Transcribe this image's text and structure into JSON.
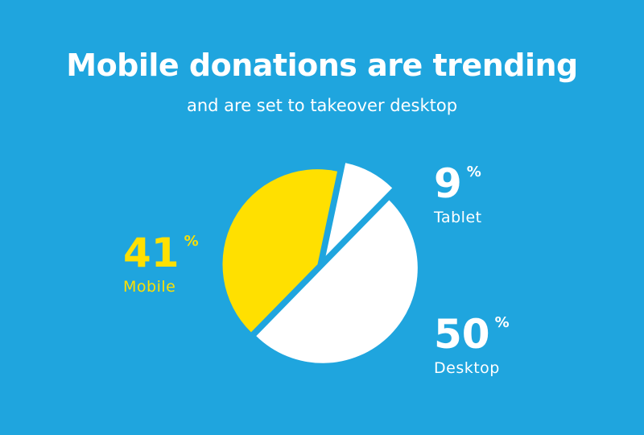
{
  "header": {
    "title": "Mobile donations are trending",
    "subtitle": "and are set to takeover desktop"
  },
  "colors": {
    "background": "#1FA5DE",
    "mobile": "#FFE000",
    "tablet": "#FFFFFF",
    "desktop": "#FFFFFF"
  },
  "chart_data": {
    "type": "pie",
    "title": "Mobile donations are trending",
    "subtitle": "and are set to takeover desktop",
    "slices": [
      {
        "label": "Tablet",
        "value": 9,
        "color": "#FFFFFF"
      },
      {
        "label": "Desktop",
        "value": 50,
        "color": "#FFFFFF"
      },
      {
        "label": "Mobile",
        "value": 41,
        "color": "#FFE000"
      }
    ],
    "unit": "%",
    "exploded": true,
    "legend": "none"
  },
  "callouts": {
    "tablet": {
      "value": "9",
      "unit": "%",
      "label": "Tablet"
    },
    "mobile": {
      "value": "41",
      "unit": "%",
      "label": "Mobile"
    },
    "desktop": {
      "value": "50",
      "unit": "%",
      "label": "Desktop"
    }
  }
}
